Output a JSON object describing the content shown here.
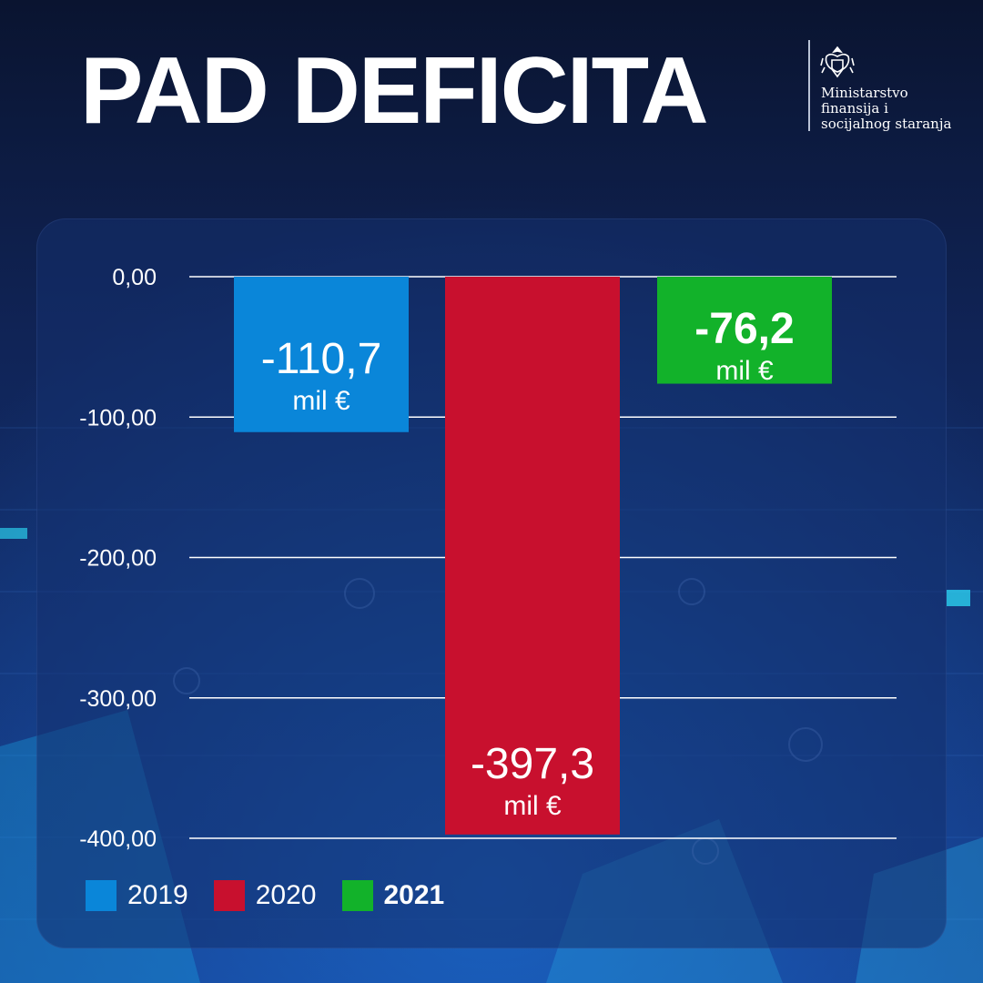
{
  "title": "PAD DEFICITA",
  "ministry": {
    "crest_icon": "montenegro-coat-of-arms-icon",
    "lines": [
      "Ministarstvo",
      "finansija i",
      "socijalnog staranja"
    ]
  },
  "colors": {
    "background": "#0b1633",
    "panel": "#14306e",
    "text": "#ffffff",
    "gridline": "#ffffff"
  },
  "chart_data": {
    "type": "bar",
    "title": "PAD DEFICITA",
    "categories": [
      "2019",
      "2020",
      "2021"
    ],
    "values": [
      -110.7,
      -397.3,
      -76.2
    ],
    "colors": [
      "#0a86d9",
      "#c8102e",
      "#12b22a"
    ],
    "data_labels": [
      {
        "value": "-110,7",
        "unit": "mil €",
        "bold": false
      },
      {
        "value": "-397,3",
        "unit": "mil €",
        "bold": false
      },
      {
        "value": "-76,2",
        "unit": "mil €",
        "bold": true
      }
    ],
    "y_ticks": [
      0,
      -100,
      -200,
      -300,
      -400
    ],
    "y_tick_labels": [
      "0,00",
      "-100,00",
      "-200,00",
      "-300,00",
      "-400,00"
    ],
    "ylim": [
      -400,
      0
    ],
    "grid": true,
    "legend": {
      "placement": "bottom-left",
      "entries": [
        {
          "label": "2019",
          "color": "#0a86d9",
          "bold": false
        },
        {
          "label": "2020",
          "color": "#c8102e",
          "bold": false
        },
        {
          "label": "2021",
          "color": "#12b22a",
          "bold": true
        }
      ]
    },
    "xlabel": "",
    "ylabel": ""
  }
}
